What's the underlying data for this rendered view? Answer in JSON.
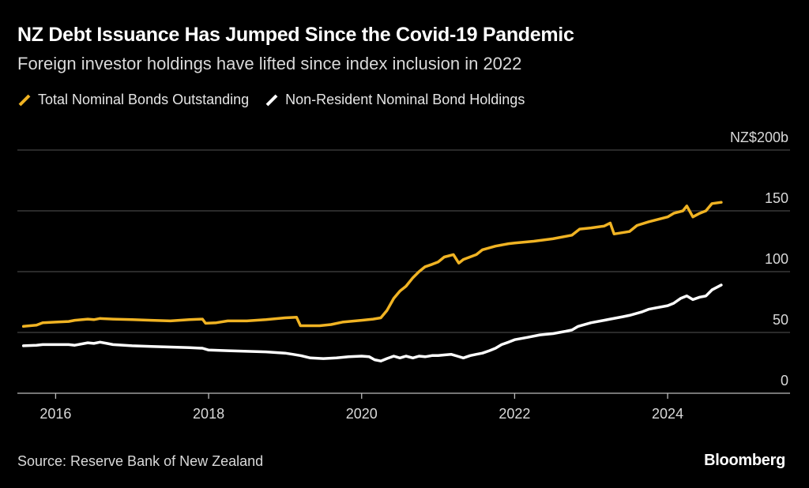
{
  "title": "NZ Debt Issuance Has Jumped Since the Covid-19 Pandemic",
  "subtitle": "Foreign investor holdings have lifted since index inclusion in 2022",
  "source": "Source: Reserve Bank of New Zealand",
  "brand": "Bloomberg",
  "colors": {
    "background": "#000000",
    "total": "#f0b323",
    "nonresident": "#ffffff",
    "grid": "#555555"
  },
  "chart_data": {
    "type": "line",
    "title": "NZ Debt Issuance Has Jumped Since the Covid-19 Pandemic",
    "subtitle": "Foreign investor holdings have lifted since index inclusion in 2022",
    "xlabel": "",
    "ylabel": "",
    "unit_label": "NZ$200b",
    "xlim": [
      2015.5,
      2025.6
    ],
    "ylim": [
      0,
      200
    ],
    "x_ticks": [
      2016,
      2018,
      2020,
      2022,
      2024
    ],
    "x_tick_labels": [
      "2016",
      "2018",
      "2020",
      "2022",
      "2024"
    ],
    "y_ticks": [
      0,
      50,
      100,
      150,
      200
    ],
    "y_tick_labels": [
      "0",
      "50",
      "100",
      "150",
      "NZ$200b"
    ],
    "grid": true,
    "legend_position": "top-left",
    "series": [
      {
        "name": "Total Nominal Bonds Outstanding",
        "color": "#f0b323",
        "points": [
          [
            2015.58,
            55
          ],
          [
            2015.75,
            56
          ],
          [
            2015.83,
            58
          ],
          [
            2016.0,
            58.5
          ],
          [
            2016.17,
            59
          ],
          [
            2016.25,
            60
          ],
          [
            2016.42,
            61
          ],
          [
            2016.5,
            60.5
          ],
          [
            2016.58,
            61.5
          ],
          [
            2016.75,
            61
          ],
          [
            2017.0,
            60.5
          ],
          [
            2017.25,
            60
          ],
          [
            2017.5,
            59.5
          ],
          [
            2017.75,
            60.5
          ],
          [
            2017.92,
            61
          ],
          [
            2017.96,
            57.5
          ],
          [
            2018.1,
            58
          ],
          [
            2018.25,
            59.5
          ],
          [
            2018.5,
            59.5
          ],
          [
            2018.75,
            60.5
          ],
          [
            2019.0,
            62
          ],
          [
            2019.15,
            62.5
          ],
          [
            2019.2,
            55.5
          ],
          [
            2019.45,
            55.5
          ],
          [
            2019.6,
            56.5
          ],
          [
            2019.75,
            58.5
          ],
          [
            2020.0,
            60
          ],
          [
            2020.15,
            61
          ],
          [
            2020.25,
            62
          ],
          [
            2020.33,
            68
          ],
          [
            2020.42,
            78
          ],
          [
            2020.5,
            84
          ],
          [
            2020.58,
            88
          ],
          [
            2020.67,
            95
          ],
          [
            2020.75,
            100
          ],
          [
            2020.83,
            104
          ],
          [
            2020.92,
            106
          ],
          [
            2021.0,
            108
          ],
          [
            2021.08,
            112
          ],
          [
            2021.2,
            114
          ],
          [
            2021.27,
            107
          ],
          [
            2021.33,
            110
          ],
          [
            2021.5,
            114
          ],
          [
            2021.58,
            118
          ],
          [
            2021.75,
            121
          ],
          [
            2021.92,
            123
          ],
          [
            2022.0,
            123.5
          ],
          [
            2022.25,
            125
          ],
          [
            2022.5,
            127
          ],
          [
            2022.75,
            130
          ],
          [
            2022.85,
            135
          ],
          [
            2023.0,
            136
          ],
          [
            2023.17,
            137.5
          ],
          [
            2023.25,
            140
          ],
          [
            2023.3,
            131
          ],
          [
            2023.5,
            133
          ],
          [
            2023.6,
            138
          ],
          [
            2023.75,
            141
          ],
          [
            2024.0,
            145
          ],
          [
            2024.08,
            148
          ],
          [
            2024.2,
            150
          ],
          [
            2024.25,
            154
          ],
          [
            2024.33,
            145
          ],
          [
            2024.42,
            148
          ],
          [
            2024.5,
            150
          ],
          [
            2024.58,
            156
          ],
          [
            2024.7,
            157
          ]
        ]
      },
      {
        "name": "Non-Resident Nominal Bond Holdings",
        "color": "#ffffff",
        "points": [
          [
            2015.58,
            39
          ],
          [
            2015.75,
            39.5
          ],
          [
            2015.83,
            40
          ],
          [
            2016.0,
            40
          ],
          [
            2016.17,
            40
          ],
          [
            2016.25,
            39.5
          ],
          [
            2016.42,
            41.5
          ],
          [
            2016.5,
            41
          ],
          [
            2016.58,
            42
          ],
          [
            2016.67,
            41
          ],
          [
            2016.75,
            40
          ],
          [
            2017.0,
            39
          ],
          [
            2017.25,
            38.5
          ],
          [
            2017.5,
            38
          ],
          [
            2017.75,
            37.5
          ],
          [
            2017.92,
            37
          ],
          [
            2018.0,
            35.5
          ],
          [
            2018.25,
            35
          ],
          [
            2018.5,
            34.5
          ],
          [
            2018.75,
            34
          ],
          [
            2019.0,
            33
          ],
          [
            2019.1,
            32
          ],
          [
            2019.2,
            31
          ],
          [
            2019.33,
            29
          ],
          [
            2019.5,
            28.5
          ],
          [
            2019.67,
            29
          ],
          [
            2019.83,
            30
          ],
          [
            2020.0,
            30.5
          ],
          [
            2020.1,
            30
          ],
          [
            2020.17,
            27.5
          ],
          [
            2020.25,
            26.5
          ],
          [
            2020.33,
            28.5
          ],
          [
            2020.42,
            30.5
          ],
          [
            2020.5,
            29
          ],
          [
            2020.58,
            30.5
          ],
          [
            2020.67,
            29
          ],
          [
            2020.75,
            30.5
          ],
          [
            2020.83,
            30
          ],
          [
            2020.92,
            31
          ],
          [
            2021.0,
            31
          ],
          [
            2021.08,
            31.5
          ],
          [
            2021.17,
            32
          ],
          [
            2021.25,
            30.5
          ],
          [
            2021.33,
            29
          ],
          [
            2021.42,
            31
          ],
          [
            2021.5,
            32
          ],
          [
            2021.58,
            33
          ],
          [
            2021.67,
            35
          ],
          [
            2021.75,
            37
          ],
          [
            2021.83,
            40
          ],
          [
            2021.92,
            42
          ],
          [
            2022.0,
            44
          ],
          [
            2022.17,
            46
          ],
          [
            2022.33,
            48
          ],
          [
            2022.5,
            49
          ],
          [
            2022.67,
            51
          ],
          [
            2022.75,
            52
          ],
          [
            2022.83,
            55
          ],
          [
            2023.0,
            58
          ],
          [
            2023.17,
            60
          ],
          [
            2023.25,
            61
          ],
          [
            2023.42,
            63
          ],
          [
            2023.5,
            64
          ],
          [
            2023.67,
            67
          ],
          [
            2023.75,
            69
          ],
          [
            2023.83,
            70
          ],
          [
            2024.0,
            72
          ],
          [
            2024.08,
            74
          ],
          [
            2024.17,
            78
          ],
          [
            2024.25,
            80
          ],
          [
            2024.33,
            77
          ],
          [
            2024.42,
            79
          ],
          [
            2024.5,
            80
          ],
          [
            2024.58,
            85
          ],
          [
            2024.7,
            89
          ]
        ]
      }
    ]
  }
}
